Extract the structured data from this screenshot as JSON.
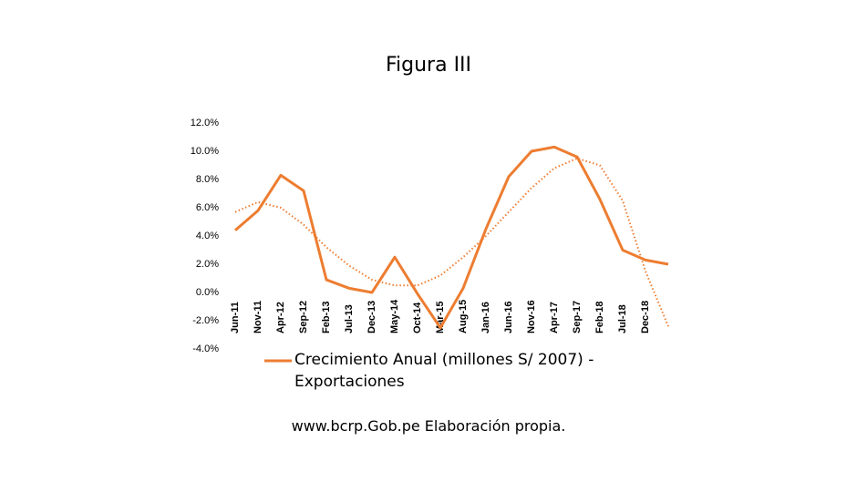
{
  "chart_data": {
    "type": "line",
    "title": "Figura III",
    "source": "www.bcrp.Gob.pe Elaboración propia.",
    "categories": [
      "Jun-11",
      "Nov-11",
      "Apr-12",
      "Sep-12",
      "Feb-13",
      "Jul-13",
      "Dec-13",
      "May-14",
      "Oct-14",
      "Mar-15",
      "Aug-15",
      "Jan-16",
      "Jun-16",
      "Nov-16",
      "Apr-17",
      "Sep-17",
      "Feb-18",
      "Jul-18",
      "Dec-18",
      null
    ],
    "series": [
      {
        "name": "Crecimiento Anual (millones S/ 2007) - Exportaciones",
        "color": "#ED7D31",
        "values": [
          4.4,
          5.8,
          8.3,
          7.2,
          0.9,
          0.3,
          0.0,
          2.5,
          -0.1,
          -2.5,
          0.3,
          4.5,
          8.2,
          10.0,
          10.3,
          9.6,
          6.6,
          3.0,
          2.3,
          2.0
        ]
      },
      {
        "color": "#ED7D31",
        "dotted": true,
        "values": [
          5.7,
          6.4,
          6.0,
          4.8,
          3.2,
          1.9,
          0.9,
          0.5,
          0.5,
          1.2,
          2.5,
          4.0,
          5.7,
          7.4,
          8.8,
          9.5,
          9.0,
          6.5,
          1.5,
          -2.4
        ]
      }
    ],
    "ylim": [
      -4,
      12
    ],
    "yticks": [
      {
        "value": -4,
        "label": "-4.0%"
      },
      {
        "value": -2,
        "label": "-2.0%"
      },
      {
        "value": 0,
        "label": "0.0%"
      },
      {
        "value": 2,
        "label": "2.0%"
      },
      {
        "value": 4,
        "label": "4.0%"
      },
      {
        "value": 6,
        "label": "6.0%"
      },
      {
        "value": 8,
        "label": "8.0%"
      },
      {
        "value": 10,
        "label": "10.0%"
      },
      {
        "value": 12,
        "label": "12.0%"
      }
    ],
    "grid": false
  }
}
